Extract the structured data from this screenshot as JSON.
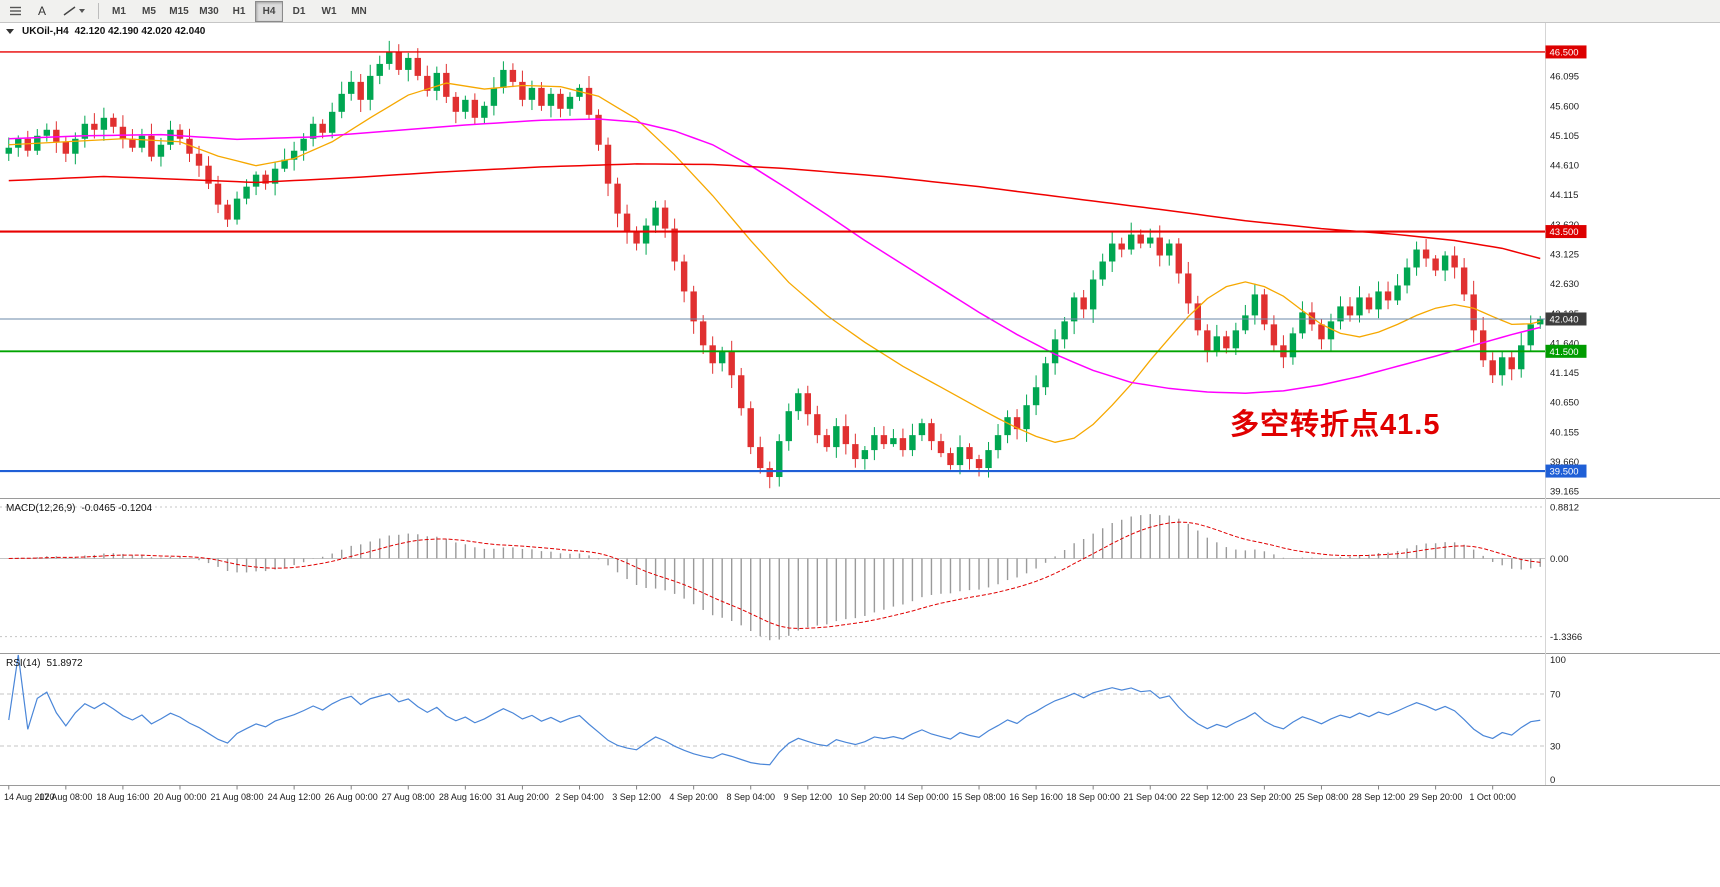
{
  "toolbar": {
    "text_tool_label": "A",
    "periods": [
      "M1",
      "M5",
      "M15",
      "M30",
      "H1",
      "H4",
      "D1",
      "W1",
      "MN"
    ],
    "active_period": "H4"
  },
  "chart": {
    "title_symbol": "UKOil-,H4",
    "title_ohlc": "42.120 42.190 42.020 42.040",
    "annotation": "多空转折点41.5",
    "price_axis_labels": [
      "46.095",
      "45.600",
      "45.105",
      "44.610",
      "44.115",
      "43.620",
      "43.125",
      "42.630",
      "42.135",
      "41.640",
      "41.145",
      "40.650",
      "40.155",
      "39.660",
      "39.165"
    ]
  },
  "macd": {
    "title": "MACD(12,26,9)",
    "values": "-0.0465 -0.1204",
    "axis_labels": [
      "0.8812",
      "0.00",
      "-1.3366"
    ]
  },
  "rsi": {
    "title": "RSI(14)",
    "value": "51.8972",
    "axis_labels": [
      "100",
      "70",
      "30",
      "0"
    ],
    "level_lines": [
      70,
      30
    ]
  },
  "time_axis": [
    "14 Aug 2020",
    "17 Aug 08:00",
    "18 Aug 16:00",
    "20 Aug 00:00",
    "21 Aug 08:00",
    "24 Aug 12:00",
    "26 Aug 00:00",
    "27 Aug 08:00",
    "28 Aug 16:00",
    "31 Aug 20:00",
    "2 Sep 04:00",
    "3 Sep 12:00",
    "4 Sep 20:00",
    "8 Sep 04:00",
    "9 Sep 12:00",
    "10 Sep 20:00",
    "14 Sep 00:00",
    "15 Sep 08:00",
    "16 Sep 16:00",
    "18 Sep 00:00",
    "21 Sep 04:00",
    "22 Sep 12:00",
    "23 Sep 20:00",
    "25 Sep 08:00",
    "28 Sep 12:00",
    "29 Sep 20:00",
    "1 Oct 00:00"
  ],
  "chart_data": {
    "type": "candlestick",
    "symbol": "UKOil-",
    "timeframe": "H4",
    "price_range": [
      39.05,
      46.95
    ],
    "first_open": 44.8,
    "closes": [
      44.9,
      45.05,
      44.85,
      45.1,
      45.2,
      45.0,
      44.8,
      45.05,
      45.3,
      45.2,
      45.4,
      45.25,
      45.05,
      44.9,
      45.1,
      44.75,
      44.95,
      45.2,
      45.05,
      44.8,
      44.6,
      44.3,
      43.95,
      43.7,
      44.05,
      44.25,
      44.45,
      44.3,
      44.55,
      44.7,
      44.85,
      45.05,
      45.3,
      45.15,
      45.5,
      45.8,
      46.0,
      45.7,
      46.1,
      46.3,
      46.5,
      46.2,
      46.4,
      46.1,
      45.85,
      46.15,
      45.75,
      45.5,
      45.7,
      45.4,
      45.6,
      45.9,
      46.2,
      46.0,
      45.7,
      45.9,
      45.6,
      45.8,
      45.55,
      45.75,
      45.9,
      45.45,
      44.95,
      44.3,
      43.8,
      43.5,
      43.3,
      43.6,
      43.9,
      43.55,
      43.0,
      42.5,
      42.0,
      41.6,
      41.3,
      41.5,
      41.1,
      40.55,
      39.9,
      39.55,
      39.4,
      40.0,
      40.5,
      40.8,
      40.45,
      40.1,
      39.9,
      40.25,
      39.95,
      39.7,
      39.85,
      40.1,
      39.95,
      40.05,
      39.85,
      40.1,
      40.3,
      40.0,
      39.8,
      39.6,
      39.9,
      39.7,
      39.55,
      39.85,
      40.1,
      40.4,
      40.2,
      40.6,
      40.9,
      41.3,
      41.7,
      42.0,
      42.4,
      42.2,
      42.7,
      43.0,
      43.3,
      43.2,
      43.45,
      43.3,
      43.4,
      43.1,
      43.3,
      42.8,
      42.3,
      41.85,
      41.5,
      41.75,
      41.55,
      41.85,
      42.1,
      42.45,
      41.95,
      41.6,
      41.4,
      41.8,
      42.15,
      41.95,
      41.7,
      42.0,
      42.25,
      42.1,
      42.4,
      42.2,
      42.5,
      42.35,
      42.6,
      42.9,
      43.2,
      43.05,
      42.85,
      43.1,
      42.9,
      42.45,
      41.85,
      41.35,
      41.1,
      41.4,
      41.2,
      41.6,
      41.95,
      42.04
    ],
    "ma_fast_orange": [
      [
        0,
        44.95
      ],
      [
        6,
        45.0
      ],
      [
        12,
        45.05
      ],
      [
        18,
        45.0
      ],
      [
        22,
        44.76
      ],
      [
        26,
        44.6
      ],
      [
        30,
        44.72
      ],
      [
        34,
        45.0
      ],
      [
        38,
        45.4
      ],
      [
        42,
        45.78
      ],
      [
        46,
        45.98
      ],
      [
        50,
        45.88
      ],
      [
        54,
        45.94
      ],
      [
        58,
        45.92
      ],
      [
        62,
        45.76
      ],
      [
        66,
        45.38
      ],
      [
        70,
        44.78
      ],
      [
        74,
        44.1
      ],
      [
        78,
        43.35
      ],
      [
        82,
        42.65
      ],
      [
        86,
        42.1
      ],
      [
        90,
        41.65
      ],
      [
        94,
        41.25
      ],
      [
        98,
        40.9
      ],
      [
        102,
        40.55
      ],
      [
        104,
        40.38
      ],
      [
        106,
        40.22
      ],
      [
        108,
        40.08
      ],
      [
        110,
        39.98
      ],
      [
        112,
        40.05
      ],
      [
        114,
        40.28
      ],
      [
        116,
        40.6
      ],
      [
        118,
        40.95
      ],
      [
        120,
        41.35
      ],
      [
        122,
        41.72
      ],
      [
        124,
        42.08
      ],
      [
        126,
        42.38
      ],
      [
        128,
        42.58
      ],
      [
        130,
        42.66
      ],
      [
        132,
        42.58
      ],
      [
        134,
        42.42
      ],
      [
        136,
        42.18
      ],
      [
        138,
        41.95
      ],
      [
        140,
        41.8
      ],
      [
        142,
        41.74
      ],
      [
        144,
        41.82
      ],
      [
        146,
        41.95
      ],
      [
        148,
        42.1
      ],
      [
        150,
        42.22
      ],
      [
        152,
        42.28
      ],
      [
        154,
        42.22
      ],
      [
        156,
        42.08
      ],
      [
        158,
        41.95
      ],
      [
        160,
        41.96
      ],
      [
        161,
        42.0
      ]
    ],
    "ma_mid_magenta": [
      [
        0,
        45.05
      ],
      [
        8,
        45.1
      ],
      [
        16,
        45.12
      ],
      [
        24,
        45.04
      ],
      [
        32,
        45.08
      ],
      [
        40,
        45.18
      ],
      [
        48,
        45.28
      ],
      [
        56,
        45.36
      ],
      [
        62,
        45.38
      ],
      [
        66,
        45.33
      ],
      [
        70,
        45.18
      ],
      [
        74,
        44.95
      ],
      [
        78,
        44.6
      ],
      [
        82,
        44.2
      ],
      [
        86,
        43.78
      ],
      [
        90,
        43.35
      ],
      [
        94,
        42.95
      ],
      [
        98,
        42.55
      ],
      [
        102,
        42.15
      ],
      [
        106,
        41.78
      ],
      [
        110,
        41.45
      ],
      [
        114,
        41.18
      ],
      [
        118,
        40.98
      ],
      [
        122,
        40.88
      ],
      [
        126,
        40.82
      ],
      [
        130,
        40.8
      ],
      [
        134,
        40.84
      ],
      [
        138,
        40.94
      ],
      [
        142,
        41.08
      ],
      [
        146,
        41.25
      ],
      [
        150,
        41.42
      ],
      [
        154,
        41.6
      ],
      [
        158,
        41.78
      ],
      [
        161,
        41.9
      ]
    ],
    "ma_slow_red": [
      [
        0,
        44.35
      ],
      [
        10,
        44.42
      ],
      [
        20,
        44.36
      ],
      [
        26,
        44.32
      ],
      [
        36,
        44.4
      ],
      [
        46,
        44.5
      ],
      [
        56,
        44.58
      ],
      [
        66,
        44.63
      ],
      [
        74,
        44.62
      ],
      [
        82,
        44.55
      ],
      [
        92,
        44.42
      ],
      [
        102,
        44.25
      ],
      [
        112,
        44.05
      ],
      [
        122,
        43.85
      ],
      [
        130,
        43.68
      ],
      [
        138,
        43.55
      ],
      [
        146,
        43.45
      ],
      [
        152,
        43.35
      ],
      [
        157,
        43.22
      ],
      [
        161,
        43.05
      ]
    ],
    "hlines": [
      {
        "price": 46.5,
        "label": "46.500",
        "line_color": "#e80000",
        "badge_color": "#dd0000",
        "width": 1.4
      },
      {
        "price": 43.5,
        "label": "43.500",
        "line_color": "#e80000",
        "badge_color": "#dd0000",
        "width": 2.2
      },
      {
        "price": 42.04,
        "label": "42.040",
        "line_color": "#6b88a8",
        "badge_color": "#3d3d3d",
        "width": 1
      },
      {
        "price": 41.5,
        "label": "41.500",
        "line_color": "#00a400",
        "badge_color": "#009c00",
        "width": 1.8
      },
      {
        "price": 39.5,
        "label": "39.500",
        "line_color": "#1f5fd6",
        "badge_color": "#1f5fd6",
        "width": 2.2
      }
    ],
    "colors": {
      "up": "#00a651",
      "down": "#e03030",
      "ma_fast": "#f6a800",
      "ma_mid": "#ff00ff",
      "ma_slow": "#f00000",
      "macd_hist": "#9a9a9a",
      "macd_signal": "#e00000",
      "rsi_line": "#4a86d8"
    },
    "macd_scale": {
      "max": 1.0,
      "min": -1.6
    },
    "macd_params": [
      12,
      26,
      9
    ],
    "rsi_period": 14
  }
}
